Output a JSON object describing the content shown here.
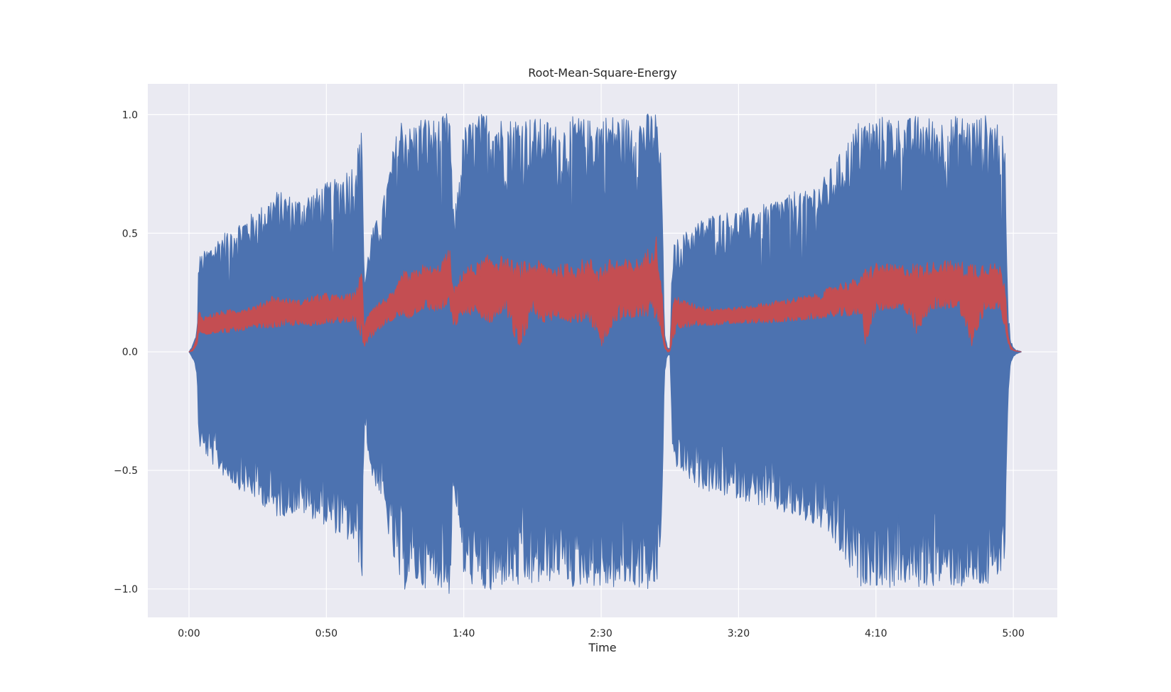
{
  "chart_data": {
    "type": "line",
    "title": "Root-Mean-Square-Energy",
    "xlabel": "Time",
    "ylabel": "",
    "xlim": [
      -15,
      316
    ],
    "ylim": [
      -1.12,
      1.13
    ],
    "grid": true,
    "legend": "none",
    "x_ticks": [
      {
        "value": 0,
        "label": "0:00"
      },
      {
        "value": 50,
        "label": "0:50"
      },
      {
        "value": 100,
        "label": "1:40"
      },
      {
        "value": 150,
        "label": "2:30"
      },
      {
        "value": 200,
        "label": "3:20"
      },
      {
        "value": 250,
        "label": "4:10"
      },
      {
        "value": 300,
        "label": "5:00"
      }
    ],
    "y_ticks": [
      {
        "value": 1.0,
        "label": "1.0"
      },
      {
        "value": 0.5,
        "label": "0.5"
      },
      {
        "value": 0.0,
        "label": "0.0"
      },
      {
        "value": -0.5,
        "label": "−0.5"
      },
      {
        "value": -1.0,
        "label": "−1.0"
      }
    ],
    "colors": {
      "waveform": "#4c72b0",
      "rms": "#c44e52",
      "plot_background": "#eaeaf2",
      "grid": "#ffffff"
    },
    "series": [
      {
        "id": "waveform",
        "style": "envelope",
        "x": [
          0,
          1,
          2,
          3,
          3.5,
          5,
          8,
          12,
          18,
          25,
          32,
          40,
          48,
          55,
          60,
          63,
          63.8,
          64.5,
          66,
          70,
          75,
          78,
          80,
          85,
          90,
          95,
          96,
          97,
          100,
          105,
          110,
          115,
          120,
          125,
          130,
          135,
          140,
          145,
          150,
          155,
          160,
          165,
          170,
          172,
          173,
          174,
          175,
          176,
          178,
          180,
          185,
          190,
          200,
          210,
          220,
          230,
          235,
          240,
          245,
          246,
          250,
          255,
          260,
          265,
          270,
          275,
          280,
          285,
          290,
          295,
          297,
          298,
          299,
          300,
          301,
          302,
          303
        ],
        "upper": [
          0,
          0.02,
          0.05,
          0.1,
          0.4,
          0.42,
          0.45,
          0.5,
          0.55,
          0.6,
          0.68,
          0.65,
          0.7,
          0.75,
          0.8,
          0.95,
          0.3,
          0.35,
          0.5,
          0.6,
          0.9,
          1.02,
          0.95,
          1.0,
          0.98,
          1.02,
          0.6,
          0.62,
          0.95,
          1.0,
          1.02,
          0.98,
          1.0,
          0.99,
          0.98,
          0.95,
          1.0,
          0.98,
          1.0,
          1.0,
          0.99,
          1.0,
          1.02,
          0.8,
          0.1,
          0.02,
          0.01,
          0.45,
          0.48,
          0.5,
          0.55,
          0.58,
          0.6,
          0.63,
          0.68,
          0.72,
          0.8,
          0.9,
          1.0,
          0.98,
          0.99,
          1.0,
          0.98,
          1.0,
          0.99,
          0.98,
          1.0,
          0.99,
          1.0,
          0.98,
          0.85,
          0.2,
          0.05,
          0.02,
          0.01,
          0.005,
          0
        ],
        "lower": [
          0,
          -0.02,
          -0.05,
          -0.1,
          -0.4,
          -0.42,
          -0.47,
          -0.52,
          -0.58,
          -0.63,
          -0.7,
          -0.68,
          -0.72,
          -0.78,
          -0.82,
          -0.95,
          -0.3,
          -0.35,
          -0.52,
          -0.62,
          -0.92,
          -1.02,
          -0.96,
          -1.0,
          -0.98,
          -1.03,
          -0.6,
          -0.63,
          -0.96,
          -1.0,
          -1.03,
          -0.98,
          -1.0,
          -0.99,
          -0.98,
          -0.95,
          -1.0,
          -0.98,
          -1.0,
          -1.0,
          -0.99,
          -1.0,
          -1.02,
          -0.8,
          -0.1,
          -0.02,
          -0.01,
          -0.45,
          -0.5,
          -0.52,
          -0.57,
          -0.6,
          -0.62,
          -0.66,
          -0.7,
          -0.75,
          -0.82,
          -0.92,
          -1.0,
          -0.98,
          -0.99,
          -1.0,
          -0.98,
          -1.0,
          -0.99,
          -0.98,
          -1.0,
          -0.99,
          -1.0,
          -0.98,
          -0.85,
          -0.2,
          -0.05,
          -0.02,
          -0.01,
          -0.005,
          0
        ]
      },
      {
        "id": "rms",
        "style": "band",
        "x": [
          0,
          1,
          2,
          3,
          3.5,
          5,
          10,
          15,
          20,
          25,
          30,
          35,
          40,
          45,
          50,
          55,
          60,
          63,
          63.8,
          64.5,
          66,
          70,
          75,
          78,
          80,
          85,
          90,
          95,
          96,
          97,
          100,
          105,
          110,
          115,
          120,
          125,
          130,
          135,
          140,
          145,
          150,
          155,
          160,
          165,
          170,
          172,
          173,
          174,
          175,
          176,
          178,
          180,
          185,
          190,
          200,
          210,
          220,
          230,
          235,
          240,
          245,
          246,
          250,
          255,
          260,
          265,
          270,
          275,
          280,
          285,
          290,
          295,
          297,
          298,
          299,
          300,
          301,
          302,
          303
        ],
        "upper": [
          0,
          0.01,
          0.03,
          0.08,
          0.18,
          0.15,
          0.17,
          0.18,
          0.19,
          0.2,
          0.24,
          0.23,
          0.22,
          0.24,
          0.25,
          0.24,
          0.25,
          0.35,
          0.1,
          0.14,
          0.2,
          0.22,
          0.26,
          0.35,
          0.33,
          0.37,
          0.36,
          0.44,
          0.27,
          0.28,
          0.36,
          0.38,
          0.42,
          0.4,
          0.38,
          0.39,
          0.38,
          0.37,
          0.38,
          0.4,
          0.38,
          0.4,
          0.39,
          0.4,
          0.5,
          0.3,
          0.05,
          0.01,
          0.01,
          0.22,
          0.24,
          0.22,
          0.2,
          0.19,
          0.19,
          0.21,
          0.23,
          0.25,
          0.29,
          0.3,
          0.32,
          0.36,
          0.38,
          0.37,
          0.37,
          0.38,
          0.38,
          0.39,
          0.38,
          0.39,
          0.38,
          0.37,
          0.3,
          0.08,
          0.03,
          0.01,
          0.005,
          0.002,
          0
        ],
        "lower": [
          0,
          0.0,
          0.01,
          0.03,
          0.08,
          0.07,
          0.08,
          0.08,
          0.09,
          0.1,
          0.1,
          0.11,
          0.11,
          0.11,
          0.12,
          0.12,
          0.13,
          0.05,
          0.02,
          0.03,
          0.05,
          0.1,
          0.14,
          0.15,
          0.14,
          0.18,
          0.17,
          0.19,
          0.1,
          0.11,
          0.16,
          0.15,
          0.12,
          0.18,
          0.01,
          0.15,
          0.12,
          0.14,
          0.12,
          0.13,
          0.02,
          0.13,
          0.14,
          0.15,
          0.14,
          0.08,
          0.02,
          0.0,
          0.0,
          0.05,
          0.1,
          0.1,
          0.11,
          0.11,
          0.12,
          0.12,
          0.13,
          0.14,
          0.15,
          0.15,
          0.16,
          0.03,
          0.17,
          0.18,
          0.18,
          0.07,
          0.18,
          0.18,
          0.19,
          0.02,
          0.18,
          0.18,
          0.1,
          0.04,
          0.01,
          0.005,
          0.002,
          0.001,
          0
        ]
      }
    ]
  }
}
